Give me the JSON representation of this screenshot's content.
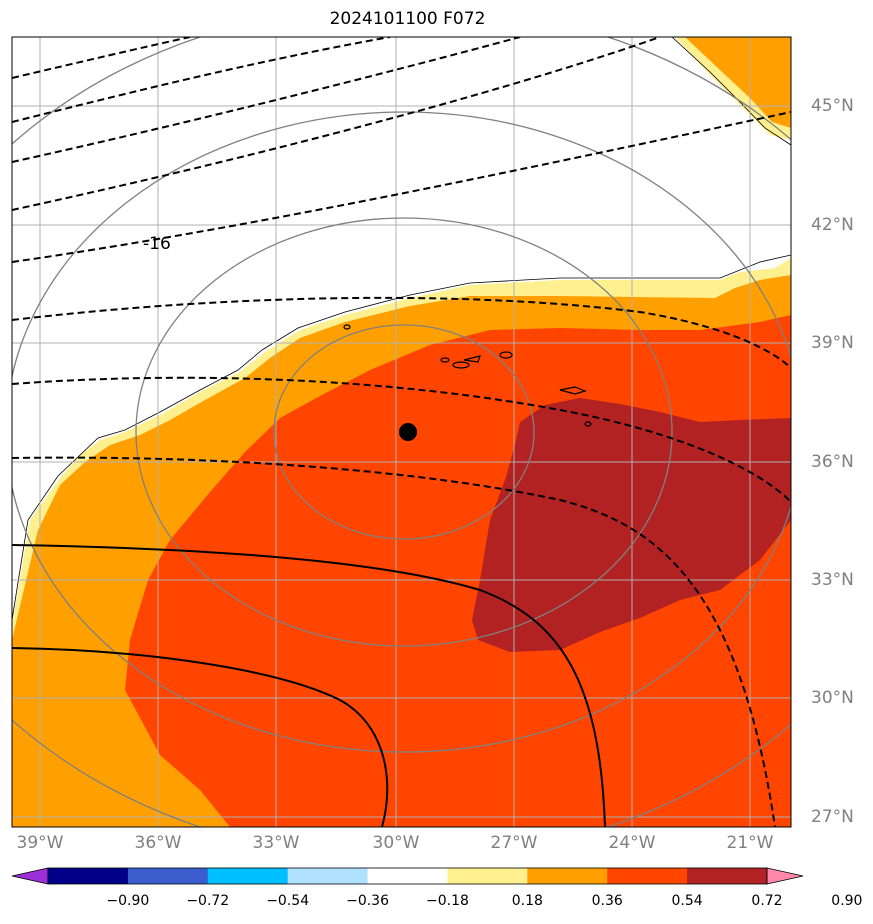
{
  "title": "2024101100 F072",
  "contour_label": "-16",
  "lat_labels": [
    "45°N",
    "42°N",
    "39°N",
    "36°N",
    "33°N",
    "30°N",
    "27°N"
  ],
  "lon_labels": [
    "39°W",
    "36°W",
    "33°W",
    "30°W",
    "27°W",
    "24°W",
    "21°W"
  ],
  "colorbar": {
    "labels": [
      "−0.90",
      "−0.72",
      "−0.54",
      "−0.36",
      "−0.18",
      "0.18",
      "0.36",
      "0.54",
      "0.72",
      "0.90"
    ],
    "colors": [
      "#9b30d9",
      "#00008b",
      "#3a5fcd",
      "#00bfff",
      "#b0e2ff",
      "#ffffff",
      "#fff08f",
      "#ffa000",
      "#ff4500",
      "#b22222",
      "#ff88aa"
    ]
  },
  "colors": {
    "band_light": "#fff08f",
    "band_orange": "#ffa000",
    "band_red": "#ff4500",
    "band_darkred": "#b22222",
    "range_rings": "#808080",
    "gridlines": "#b0b0b0"
  },
  "center_marker": {
    "lat": 36.7,
    "lon": -29.8
  }
}
